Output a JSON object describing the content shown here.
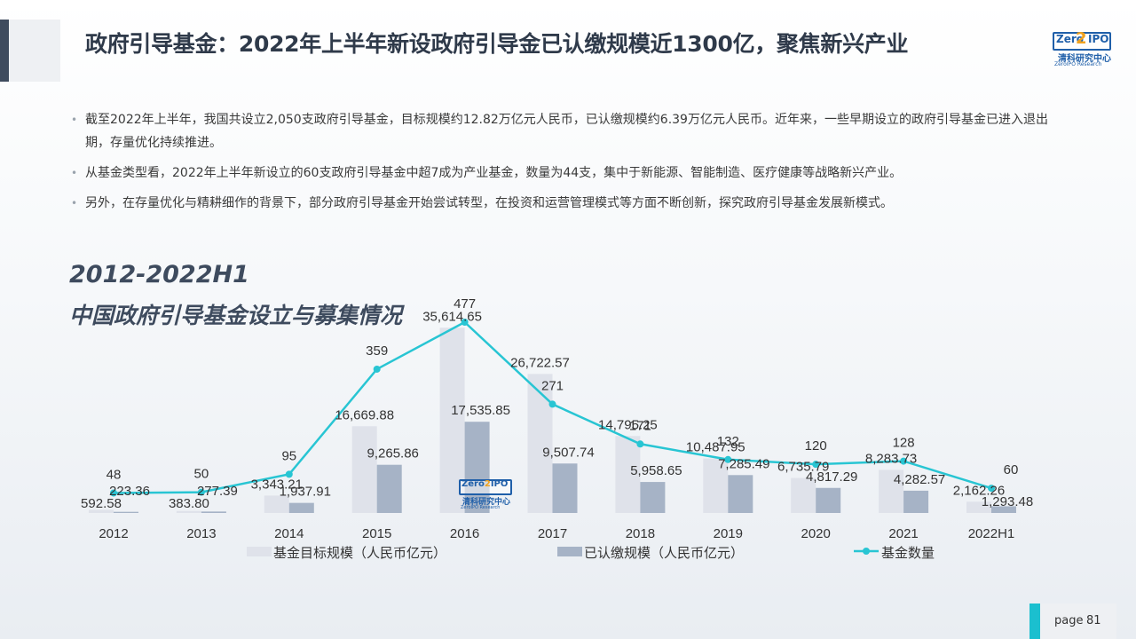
{
  "header": {
    "title": "政府引导基金：2022年上半年新设政府引导金已认缴规模近1300亿，聚焦新兴产业",
    "logo": {
      "zero": "Zero",
      "two": "2",
      "ipo": "IPO",
      "cn": "清科研究中心",
      "en": "ZeroIPO Research"
    }
  },
  "bullets": [
    "截至2022年上半年，我国共设立2,050支政府引导基金，目标规模约12.82万亿元人民币，已认缴规模约6.39万亿元人民币。近年来，一些早期设立的政府引导基金已进入退出期，存量优化持续推进。",
    "从基金类型看，2022年上半年新设立的60支政府引导基金中超7成为产业基金，数量为44支，集中于新能源、智能制造、医疗健康等战略新兴产业。",
    "另外，在存量优化与精耕细作的背景下，部分政府引导基金开始尝试转型，在投资和运营管理模式等方面不断创新，探究政府引导基金发展新模式。"
  ],
  "chart_title": {
    "line1": "2012-2022H1",
    "line2": "中国政府引导基金设立与募集情况"
  },
  "chart_data": {
    "type": "bar",
    "categories": [
      "2012",
      "2013",
      "2014",
      "2015",
      "2016",
      "2017",
      "2018",
      "2019",
      "2020",
      "2021",
      "2022H1"
    ],
    "series": [
      {
        "name": "基金目标规模（人民币亿元）",
        "kind": "bar",
        "color": "#dfe2ea",
        "values": [
          592.58,
          383.8,
          3343.21,
          16669.88,
          35614.65,
          26722.57,
          14795.25,
          10487.95,
          6735.79,
          8283.73,
          2162.26
        ],
        "labels": [
          "592.58",
          "383.80",
          "3,343.21",
          "16,669.88",
          "35,614.65",
          "26,722.57",
          "14,795.25",
          "10,487.95",
          "6,735.79",
          "8,283.73",
          "2,162.26"
        ]
      },
      {
        "name": "已认缴规模（人民币亿元）",
        "kind": "bar",
        "color": "#a6b3c6",
        "values": [
          223.36,
          277.39,
          1937.91,
          9265.86,
          17535.85,
          9507.74,
          5958.65,
          7285.49,
          4817.29,
          4282.57,
          1293.48
        ],
        "labels": [
          "223.36",
          "277.39",
          "1,937.91",
          "9,265.86",
          "17,535.85",
          "9,507.74",
          "5,958.65",
          "7,285.49",
          "4,817.29",
          "4,282.57",
          "1,293.48"
        ]
      },
      {
        "name": "基金数量",
        "kind": "line",
        "color": "#28c5d3",
        "values": [
          48,
          50,
          95,
          359,
          477,
          271,
          171,
          132,
          120,
          128,
          60
        ],
        "labels": [
          "48",
          "50",
          "95",
          "359",
          "477",
          "271",
          "171",
          "132",
          "120",
          "128",
          "60"
        ]
      }
    ],
    "legend_position": "bottom",
    "grid": false
  },
  "watermark": {
    "zero": "Zero",
    "two": "2",
    "ipo": "IPO",
    "cn": "清科研究中心",
    "en": "ZeroIPO Research"
  },
  "footer": {
    "page_label": "page",
    "page_number": "81"
  }
}
